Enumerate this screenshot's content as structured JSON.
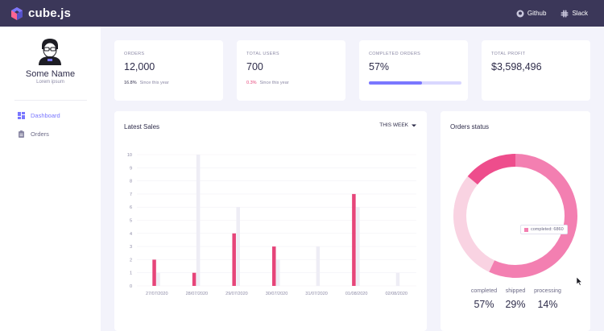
{
  "header": {
    "brand": "cube.js",
    "links": [
      {
        "label": "Github",
        "icon": "github-icon"
      },
      {
        "label": "Slack",
        "icon": "slack-icon"
      }
    ],
    "colors": {
      "bar": "#3b3759"
    }
  },
  "sidebar": {
    "user_name": "Some Name",
    "user_role": "Lorem ipsum",
    "items": [
      {
        "label": "Dashboard",
        "icon": "dashboard-icon",
        "active": true
      },
      {
        "label": "Orders",
        "icon": "orders-icon",
        "active": false
      }
    ]
  },
  "kpis": [
    {
      "title": "ORDERS",
      "value": "12,000",
      "change": "16.8%",
      "change_note": "Since this year",
      "change_color": "#7a77ff"
    },
    {
      "title": "TOTAL USERS",
      "value": "700",
      "change": "0.3%",
      "change_note": "Since this year",
      "change_color": "#e6457a"
    },
    {
      "title": "COMPLETED ORDERS",
      "value": "57%",
      "progress": 0.57
    },
    {
      "title": "TOTAL PROFIT",
      "value": "$3,598,496"
    }
  ],
  "latest_sales": {
    "title": "Latest Sales",
    "period": "THIS WEEK",
    "chart_data": {
      "type": "bar",
      "categories": [
        "27/07/2020",
        "28/07/2020",
        "29/07/2020",
        "30/07/2020",
        "31/07/2020",
        "01/08/2020",
        "02/08/2020"
      ],
      "series": [
        {
          "values": [
            2,
            1,
            4,
            3,
            0,
            7,
            0
          ],
          "color": "#e6457a"
        },
        {
          "values": [
            1,
            10,
            6,
            2,
            3,
            6,
            1
          ],
          "color": "#eeedf5"
        }
      ],
      "yticks": [
        "0",
        "1",
        "2",
        "3",
        "4",
        "5",
        "6",
        "7",
        "8",
        "9",
        "10"
      ],
      "ylim": [
        0,
        10
      ],
      "grid": true
    }
  },
  "orders_status": {
    "title": "Orders status",
    "tooltip": "completed: 6860",
    "chart_data": {
      "type": "pie",
      "categories": [
        "completed",
        "shipped",
        "processing"
      ],
      "values": [
        57,
        29,
        14
      ],
      "colors": [
        "#f37fb1",
        "#f9d3e2",
        "#ee4d8c"
      ]
    },
    "legend": [
      {
        "label": "completed",
        "value": "57%"
      },
      {
        "label": "shipped",
        "value": "29%"
      },
      {
        "label": "processing",
        "value": "14%"
      }
    ]
  }
}
